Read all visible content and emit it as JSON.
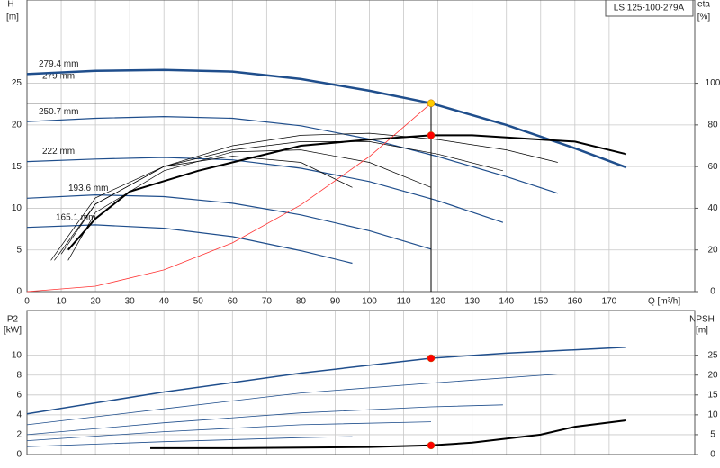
{
  "chart_data": [
    {
      "type": "line",
      "product": "LS 125-100-279A",
      "ylabel": "H",
      "yunit": "[m]",
      "y2label": "eta",
      "y2unit": "[%]",
      "xlabel": "Q [m³/h]",
      "xlim": [
        0,
        195
      ],
      "xticks": [
        0,
        10,
        20,
        30,
        40,
        50,
        60,
        70,
        80,
        90,
        100,
        110,
        120,
        130,
        140,
        150,
        160,
        170
      ],
      "ylim": [
        0,
        35
      ],
      "yticks": [
        0,
        5,
        10,
        15,
        20,
        25
      ],
      "y2lim": [
        0,
        140
      ],
      "y2ticks": [
        0,
        20,
        40,
        60,
        80,
        100
      ],
      "grid": true,
      "note": "279 mm",
      "series": [
        {
          "name": "279.4 mm",
          "color": "#1f4e8c",
          "width": 2.5,
          "x": [
            0,
            20,
            40,
            60,
            80,
            100,
            118,
            140,
            160,
            175
          ],
          "values": [
            26.1,
            26.5,
            26.6,
            26.4,
            25.5,
            24.1,
            22.6,
            20.0,
            17.2,
            14.9
          ]
        },
        {
          "name": "250.7 mm",
          "color": "#1f4e8c",
          "width": 1.2,
          "x": [
            0,
            20,
            40,
            60,
            80,
            100,
            120,
            140,
            155
          ],
          "values": [
            20.4,
            20.8,
            21.0,
            20.8,
            19.9,
            18.3,
            16.2,
            13.8,
            11.8
          ]
        },
        {
          "name": "222 mm",
          "color": "#1f4e8c",
          "width": 1.2,
          "x": [
            0,
            20,
            40,
            60,
            80,
            100,
            120,
            139
          ],
          "values": [
            15.6,
            15.9,
            16.1,
            15.8,
            14.8,
            13.2,
            10.9,
            8.3
          ]
        },
        {
          "name": "193.6 mm",
          "color": "#1f4e8c",
          "width": 1.2,
          "x": [
            0,
            20,
            40,
            60,
            80,
            100,
            118
          ],
          "values": [
            11.2,
            11.6,
            11.4,
            10.6,
            9.2,
            7.3,
            5.1
          ]
        },
        {
          "name": "165.1 mm",
          "color": "#1f4e8c",
          "width": 1.2,
          "x": [
            0,
            20,
            40,
            60,
            80,
            95
          ],
          "values": [
            7.7,
            8.0,
            7.6,
            6.6,
            4.9,
            3.4
          ]
        },
        {
          "color": "#000000",
          "width": 2,
          "axis": "y2",
          "x": [
            12,
            20,
            30,
            40,
            50,
            60,
            80,
            100,
            118,
            130,
            150,
            160,
            175
          ],
          "values": [
            20,
            35,
            48,
            53,
            58,
            62,
            70,
            73,
            75,
            75,
            73,
            72,
            66
          ]
        },
        {
          "color": "#000000",
          "width": 0.7,
          "axis": "y2",
          "x": [
            8,
            20,
            40,
            60,
            80,
            100,
            120,
            140,
            155
          ],
          "values": [
            15,
            42,
            60,
            70,
            75,
            76,
            73,
            68,
            62
          ]
        },
        {
          "color": "#000000",
          "width": 0.7,
          "axis": "y2",
          "x": [
            10,
            20,
            40,
            60,
            80,
            100,
            120,
            139
          ],
          "values": [
            18,
            42,
            60,
            68,
            72,
            72,
            66,
            58
          ]
        },
        {
          "color": "#000000",
          "width": 0.7,
          "axis": "y2",
          "x": [
            12,
            20,
            40,
            60,
            80,
            100,
            118
          ],
          "values": [
            15,
            38,
            58,
            67,
            68,
            62,
            50
          ]
        },
        {
          "color": "#000000",
          "width": 0.7,
          "axis": "y2",
          "x": [
            7,
            20,
            40,
            60,
            80,
            95
          ],
          "values": [
            15,
            45,
            60,
            65,
            62,
            50
          ]
        },
        {
          "color": "#ff3333",
          "width": 0.8,
          "x": [
            0,
            20,
            40,
            60,
            80,
            100,
            118
          ],
          "values": [
            0,
            0.65,
            2.6,
            5.84,
            10.4,
            16.2,
            22.6
          ]
        },
        {
          "color": "#ffcc00",
          "marker": "dot",
          "guide": true,
          "x": [
            118
          ],
          "values": [
            22.6
          ]
        },
        {
          "color": "#ff0000",
          "marker": "dot",
          "axis": "y2",
          "x": [
            118
          ],
          "values": [
            75
          ]
        }
      ]
    },
    {
      "type": "line",
      "ylabel": "P2",
      "yunit": "[kW]",
      "y2label": "NPSH",
      "y2unit": "[m]",
      "xlim": [
        0,
        195
      ],
      "ylim": [
        0,
        14.5
      ],
      "yticks": [
        0,
        2,
        4,
        6,
        8,
        10
      ],
      "y2lim": [
        0,
        36.25
      ],
      "y2ticks": [
        0,
        5,
        10,
        15,
        20,
        25
      ],
      "grid": true,
      "series": [
        {
          "color": "#1f4e8c",
          "width": 1.5,
          "x": [
            0,
            40,
            80,
            118,
            140,
            175
          ],
          "values": [
            4.1,
            6.3,
            8.2,
            9.7,
            10.2,
            10.8
          ]
        },
        {
          "color": "#1f4e8c",
          "width": 0.8,
          "x": [
            0,
            40,
            80,
            118,
            155
          ],
          "values": [
            3.0,
            4.6,
            6.2,
            7.2,
            8.1
          ]
        },
        {
          "color": "#1f4e8c",
          "width": 0.8,
          "x": [
            0,
            40,
            80,
            118,
            139
          ],
          "values": [
            2.0,
            3.2,
            4.2,
            4.8,
            5.0
          ]
        },
        {
          "color": "#1f4e8c",
          "width": 0.8,
          "x": [
            0,
            40,
            80,
            118
          ],
          "values": [
            1.4,
            2.3,
            3.0,
            3.3
          ]
        },
        {
          "color": "#1f4e8c",
          "width": 0.8,
          "x": [
            0,
            40,
            80,
            95
          ],
          "values": [
            0.8,
            1.3,
            1.7,
            1.8
          ]
        },
        {
          "color": "#000000",
          "width": 2,
          "axis": "y2",
          "x": [
            36,
            60,
            100,
            118,
            130,
            150,
            160,
            175
          ],
          "values": [
            1.6,
            1.6,
            1.9,
            2.3,
            3.0,
            5.0,
            7.0,
            8.6
          ]
        },
        {
          "color": "#ff0000",
          "marker": "dot",
          "x": [
            118
          ],
          "values": [
            9.7
          ]
        },
        {
          "color": "#ff0000",
          "marker": "dot",
          "axis": "y2",
          "x": [
            118
          ],
          "values": [
            2.3
          ]
        }
      ]
    }
  ]
}
